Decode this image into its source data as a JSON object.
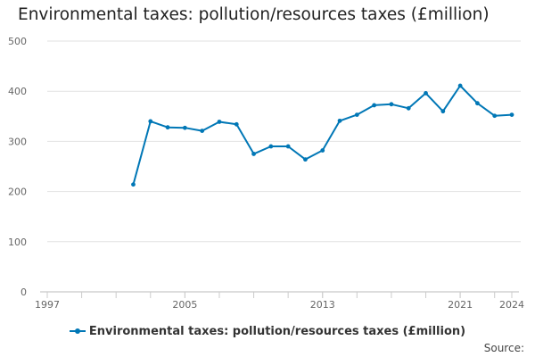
{
  "chart_data": {
    "type": "line",
    "title": "Environmental taxes: pollution/resources taxes (£million)",
    "x_ticks": [
      "1997",
      "2005",
      "2013",
      "2021",
      "2024"
    ],
    "y_ticks": [
      "0",
      "100",
      "200",
      "300",
      "400",
      "500"
    ],
    "ylim": [
      0,
      500
    ],
    "xlim": [
      1997,
      2024
    ],
    "grid": true,
    "legend_position": "bottom",
    "series": [
      {
        "name": "Environmental taxes: pollution/resources taxes (£million)",
        "color": "#0077b6",
        "x": [
          2002,
          2003,
          2004,
          2005,
          2006,
          2007,
          2008,
          2009,
          2010,
          2011,
          2012,
          2013,
          2014,
          2015,
          2016,
          2017,
          2018,
          2019,
          2020,
          2021,
          2022,
          2023,
          2024
        ],
        "y": [
          214,
          340,
          328,
          327,
          321,
          339,
          334,
          275,
          290,
          290,
          264,
          282,
          341,
          353,
          372,
          374,
          366,
          396,
          360,
          411,
          376,
          351,
          353
        ]
      }
    ]
  },
  "source_label": "Source:"
}
